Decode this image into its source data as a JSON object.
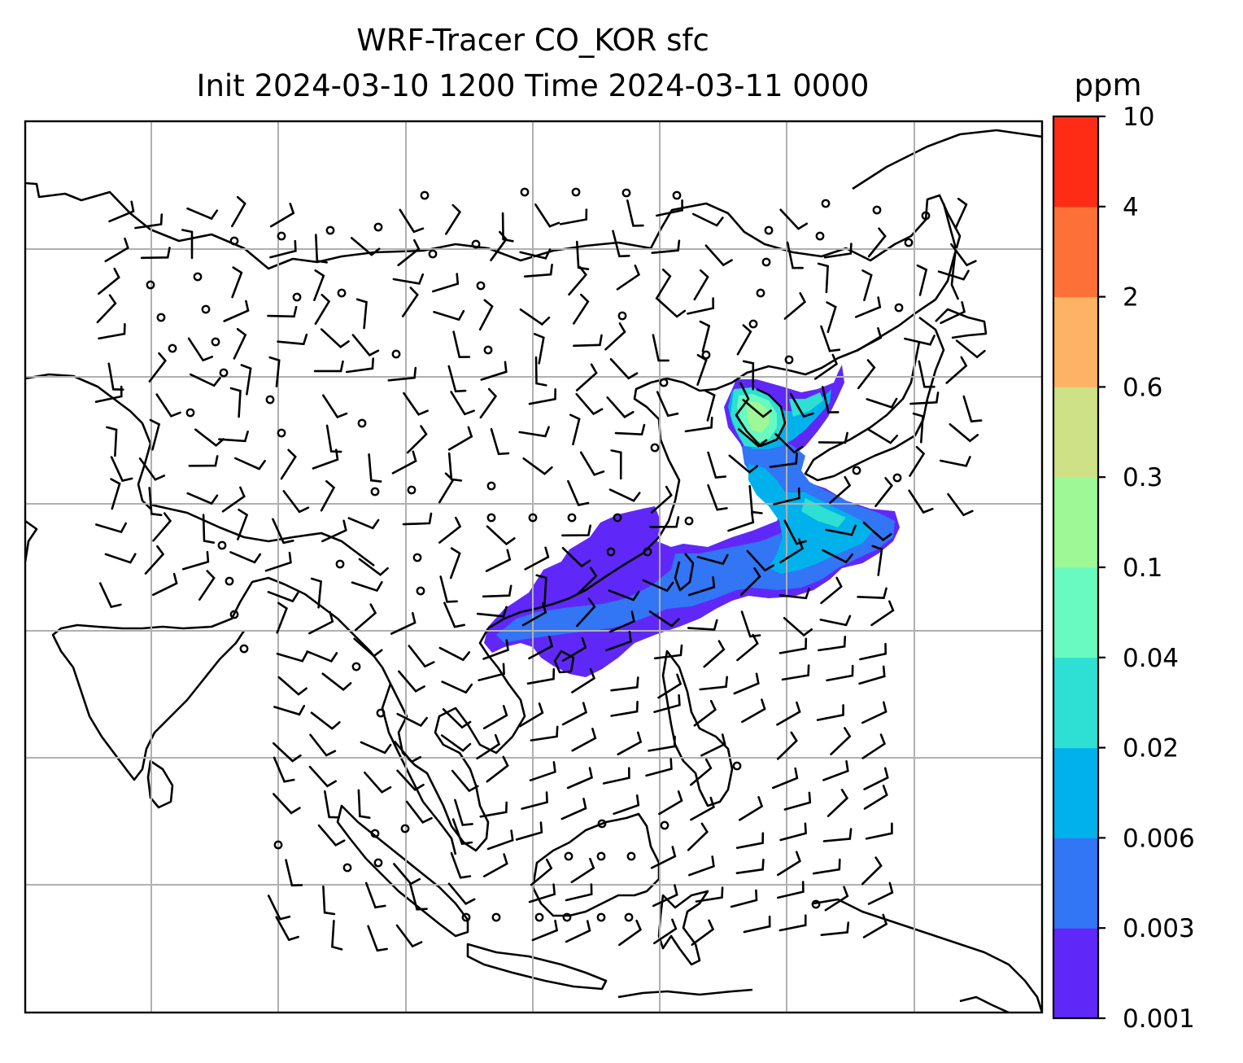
{
  "title": {
    "line1": "WRF-Tracer CO_KOR sfc",
    "line2": "Init 2024-03-10 1200 Time 2024-03-11 0000"
  },
  "colorbar": {
    "unit": "ppm",
    "levels": [
      "0.001",
      "0.003",
      "0.006",
      "0.02",
      "0.04",
      "0.1",
      "0.3",
      "0.6",
      "2",
      "4",
      "10"
    ],
    "colors": [
      "#6028f8",
      "#3275f5",
      "#01b1ec",
      "#2ee0d3",
      "#68fac0",
      "#9df895",
      "#cee186",
      "#fdb365",
      "#fd7139",
      "#fe2c15"
    ]
  },
  "map": {
    "gridlines": "on",
    "grid_color": "#b0b0b0",
    "coastline_color": "#000000",
    "wind_barb_color": "#000000"
  }
}
